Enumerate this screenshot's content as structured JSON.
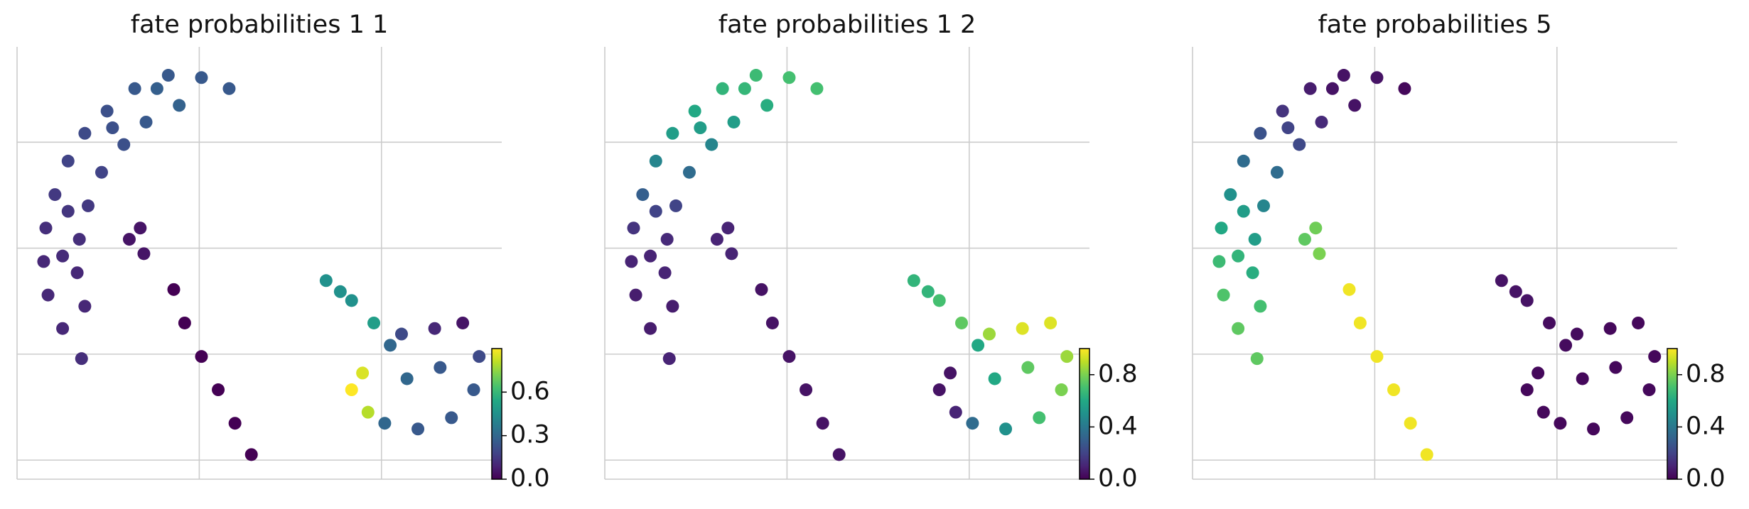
{
  "chart_data": [
    {
      "type": "scatter",
      "title": "fate probabilities 1 1",
      "cmap": "viridis",
      "grid": true,
      "xlim": [
        -5,
        8.3
      ],
      "ylim": [
        -5.9,
        14.5
      ],
      "xticks": [
        0,
        5
      ],
      "yticks": [
        -5,
        0,
        5,
        10
      ],
      "clim": [
        0,
        0.9
      ],
      "cticks": [
        {
          "value": 0,
          "label": "0.0"
        },
        0.3,
        0.6
      ],
      "x": [
        0.82,
        0.06,
        -0.85,
        -1.77,
        -2.53,
        -3.14,
        -3.6,
        -3.96,
        -4.21,
        -4.27,
        -4.15,
        -3.75,
        -3.23,
        -0.55,
        -1.46,
        -2.07,
        -2.68,
        -3.05,
        -3.29,
        -3.35,
        -3.14,
        -1.16,
        -2.38,
        -3.6,
        -3.75,
        -1.92,
        -1.62,
        -1.52,
        -0.7,
        -0.4,
        0.06,
        0.52,
        0.98,
        1.43,
        3.48,
        4.18,
        4.79,
        5.24,
        6.46,
        7.23,
        7.68,
        7.53,
        6.92,
        6.0,
        5.09,
        4.63,
        4.18,
        4.48,
        5.7,
        6.61,
        3.87,
        5.55
      ],
      "y": [
        12.53,
        13.05,
        13.16,
        12.53,
        11.47,
        10.42,
        9.11,
        7.53,
        5.95,
        4.37,
        2.79,
        1.21,
        -0.21,
        11.74,
        10.95,
        9.89,
        8.58,
        7.0,
        5.42,
        3.84,
        2.26,
        12.53,
        10.68,
        6.74,
        4.63,
        5.42,
        5.95,
        4.74,
        3.05,
        1.47,
        -0.11,
        -1.68,
        -3.26,
        -4.74,
        3.47,
        2.53,
        1.47,
        0.42,
        1.21,
        1.47,
        -0.11,
        -1.68,
        -3.0,
        -3.53,
        -3.26,
        -2.74,
        -1.68,
        -0.89,
        -1.16,
        -0.63,
        2.95,
        0.95
      ],
      "values": [
        0.25,
        0.25,
        0.25,
        0.25,
        0.22,
        0.2,
        0.18,
        0.15,
        0.12,
        0.1,
        0.1,
        0.1,
        0.12,
        0.28,
        0.25,
        0.22,
        0.18,
        0.15,
        0.12,
        0.1,
        0.1,
        0.27,
        0.22,
        0.14,
        0.11,
        0.05,
        0.05,
        0.05,
        0,
        0,
        0,
        0,
        0,
        0,
        0.45,
        0.45,
        0.5,
        0.3,
        0.1,
        0.05,
        0.2,
        0.25,
        0.25,
        0.25,
        0.3,
        0.8,
        0.9,
        0.85,
        0.3,
        0.25,
        0.45,
        0.2
      ]
    },
    {
      "type": "scatter",
      "title": "fate probabilities 1 2",
      "cmap": "viridis",
      "grid": true,
      "xlim": [
        -5,
        8.3
      ],
      "ylim": [
        -5.9,
        14.5
      ],
      "xticks": [
        0,
        5
      ],
      "yticks": [
        -5,
        0,
        5,
        10
      ],
      "clim": [
        0,
        1
      ],
      "cticks": [
        {
          "value": 0,
          "label": "0.0"
        },
        0.4,
        0.8
      ],
      "x": [
        0.82,
        0.06,
        -0.85,
        -1.77,
        -2.53,
        -3.14,
        -3.6,
        -3.96,
        -4.21,
        -4.27,
        -4.15,
        -3.75,
        -3.23,
        -0.55,
        -1.46,
        -2.07,
        -2.68,
        -3.05,
        -3.29,
        -3.35,
        -3.14,
        -1.16,
        -2.38,
        -3.6,
        -3.75,
        -1.92,
        -1.62,
        -1.52,
        -0.7,
        -0.4,
        0.06,
        0.52,
        0.98,
        1.43,
        3.48,
        4.18,
        4.79,
        5.24,
        6.46,
        7.23,
        7.68,
        7.53,
        6.92,
        6.0,
        5.09,
        4.63,
        4.18,
        4.48,
        5.7,
        6.61,
        3.87,
        5.55
      ],
      "y": [
        12.53,
        13.05,
        13.16,
        12.53,
        11.47,
        10.42,
        9.11,
        7.53,
        5.95,
        4.37,
        2.79,
        1.21,
        -0.21,
        11.74,
        10.95,
        9.89,
        8.58,
        7.0,
        5.42,
        3.84,
        2.26,
        12.53,
        10.68,
        6.74,
        4.63,
        5.42,
        5.95,
        4.74,
        3.05,
        1.47,
        -0.11,
        -1.68,
        -3.26,
        -4.74,
        3.47,
        2.53,
        1.47,
        0.42,
        1.21,
        1.47,
        -0.11,
        -1.68,
        -3.0,
        -3.53,
        -3.26,
        -2.74,
        -1.68,
        -0.89,
        -1.16,
        -0.63,
        2.95,
        0.95
      ],
      "values": [
        0.7,
        0.7,
        0.68,
        0.65,
        0.6,
        0.55,
        0.45,
        0.3,
        0.15,
        0.1,
        0.08,
        0.08,
        0.1,
        0.62,
        0.55,
        0.45,
        0.35,
        0.2,
        0.12,
        0.1,
        0.08,
        0.66,
        0.55,
        0.2,
        0.1,
        0.1,
        0.1,
        0.1,
        0.05,
        0.05,
        0.05,
        0.05,
        0.05,
        0.05,
        0.65,
        0.7,
        0.75,
        0.6,
        0.95,
        0.95,
        0.85,
        0.8,
        0.7,
        0.5,
        0.35,
        0.1,
        0.05,
        0.05,
        0.6,
        0.75,
        0.65,
        0.85
      ]
    },
    {
      "type": "scatter",
      "title": "fate probabilities 5",
      "cmap": "viridis",
      "grid": true,
      "xlim": [
        -5,
        8.3
      ],
      "ylim": [
        -5.9,
        14.5
      ],
      "xticks": [
        0,
        5
      ],
      "yticks": [
        -5,
        0,
        5,
        10
      ],
      "clim": [
        0,
        1
      ],
      "cticks": [
        {
          "value": 0,
          "label": "0.0"
        },
        0.4,
        0.8
      ],
      "x": [
        0.82,
        0.06,
        -0.85,
        -1.77,
        -2.53,
        -3.14,
        -3.6,
        -3.96,
        -4.21,
        -4.27,
        -4.15,
        -3.75,
        -3.23,
        -0.55,
        -1.46,
        -2.07,
        -2.68,
        -3.05,
        -3.29,
        -3.35,
        -3.14,
        -1.16,
        -2.38,
        -3.6,
        -3.75,
        -1.92,
        -1.62,
        -1.52,
        -0.7,
        -0.4,
        0.06,
        0.52,
        0.98,
        1.43,
        3.48,
        4.18,
        4.79,
        5.24,
        6.46,
        7.23,
        7.68,
        7.53,
        6.92,
        6.0,
        5.09,
        4.63,
        4.18,
        4.48,
        5.7,
        6.61,
        3.87,
        5.55
      ],
      "y": [
        12.53,
        13.05,
        13.16,
        12.53,
        11.47,
        10.42,
        9.11,
        7.53,
        5.95,
        4.37,
        2.79,
        1.21,
        -0.21,
        11.74,
        10.95,
        9.89,
        8.58,
        7.0,
        5.42,
        3.84,
        2.26,
        12.53,
        10.68,
        6.74,
        4.63,
        5.42,
        5.95,
        4.74,
        3.05,
        1.47,
        -0.11,
        -1.68,
        -3.26,
        -4.74,
        3.47,
        2.53,
        1.47,
        0.42,
        1.21,
        1.47,
        -0.11,
        -1.68,
        -3.0,
        -3.53,
        -3.26,
        -2.74,
        -1.68,
        -0.89,
        -1.16,
        -0.63,
        2.95,
        0.95
      ],
      "values": [
        0.02,
        0.05,
        0.05,
        0.08,
        0.15,
        0.25,
        0.35,
        0.5,
        0.6,
        0.68,
        0.72,
        0.75,
        0.75,
        0.05,
        0.12,
        0.22,
        0.35,
        0.45,
        0.55,
        0.62,
        0.7,
        0.05,
        0.2,
        0.55,
        0.65,
        0.75,
        0.78,
        0.8,
        0.98,
        0.98,
        0.98,
        0.98,
        0.98,
        0.98,
        0.05,
        0.05,
        0.03,
        0.03,
        0.02,
        0.02,
        0.02,
        0.02,
        0.02,
        0.02,
        0.02,
        0.02,
        0.02,
        0.02,
        0.02,
        0.02,
        0.05,
        0.03
      ]
    }
  ]
}
